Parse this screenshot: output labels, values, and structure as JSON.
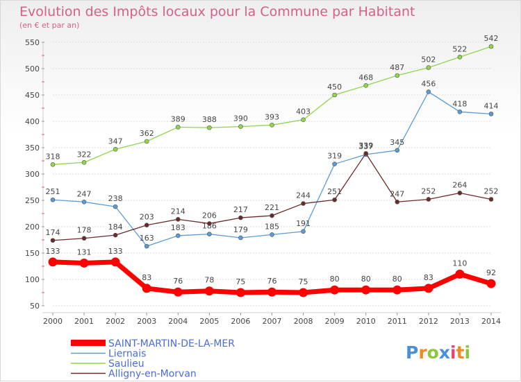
{
  "chart_data": {
    "type": "line",
    "title": "Evolution des Impôts locaux pour la Commune par Habitant",
    "subtitle": "(en € et par an)",
    "xlabel": "",
    "ylabel": "",
    "ylim": [
      50,
      550
    ],
    "y_ticks": [
      50,
      100,
      150,
      200,
      250,
      300,
      350,
      400,
      450,
      500,
      550
    ],
    "grid": true,
    "x": [
      "2000",
      "2001",
      "2002",
      "2003",
      "2004",
      "2005",
      "2006",
      "2007",
      "2008",
      "2009",
      "2010",
      "2011",
      "2012",
      "2013",
      "2014"
    ],
    "series": [
      {
        "name": "Saulieu",
        "color": "#8fd64a",
        "values": [
          318,
          322,
          347,
          362,
          389,
          388,
          390,
          393,
          403,
          450,
          468,
          487,
          502,
          522,
          542
        ]
      },
      {
        "name": "Liernais",
        "color": "#5b9bd5",
        "values": [
          251,
          247,
          238,
          163,
          183,
          186,
          179,
          185,
          191,
          319,
          337,
          345,
          456,
          418,
          414
        ]
      },
      {
        "name": "Alligny-en-Morvan",
        "color": "#6b2a2a",
        "values": [
          174,
          178,
          184,
          203,
          214,
          206,
          217,
          221,
          244,
          251,
          339,
          247,
          252,
          264,
          252
        ]
      },
      {
        "name": "SAINT-MARTIN-DE-LA-MER",
        "color": "#ff0000",
        "values": [
          133,
          131,
          133,
          83,
          76,
          78,
          75,
          76,
          75,
          80,
          80,
          80,
          83,
          110,
          92
        ]
      }
    ],
    "legend_order": [
      "SAINT-MARTIN-DE-LA-MER",
      "Liernais",
      "Saulieu",
      "Alligny-en-Morvan"
    ],
    "legend_position": "bottom-left"
  },
  "logo": {
    "text": "Proxiti"
  }
}
